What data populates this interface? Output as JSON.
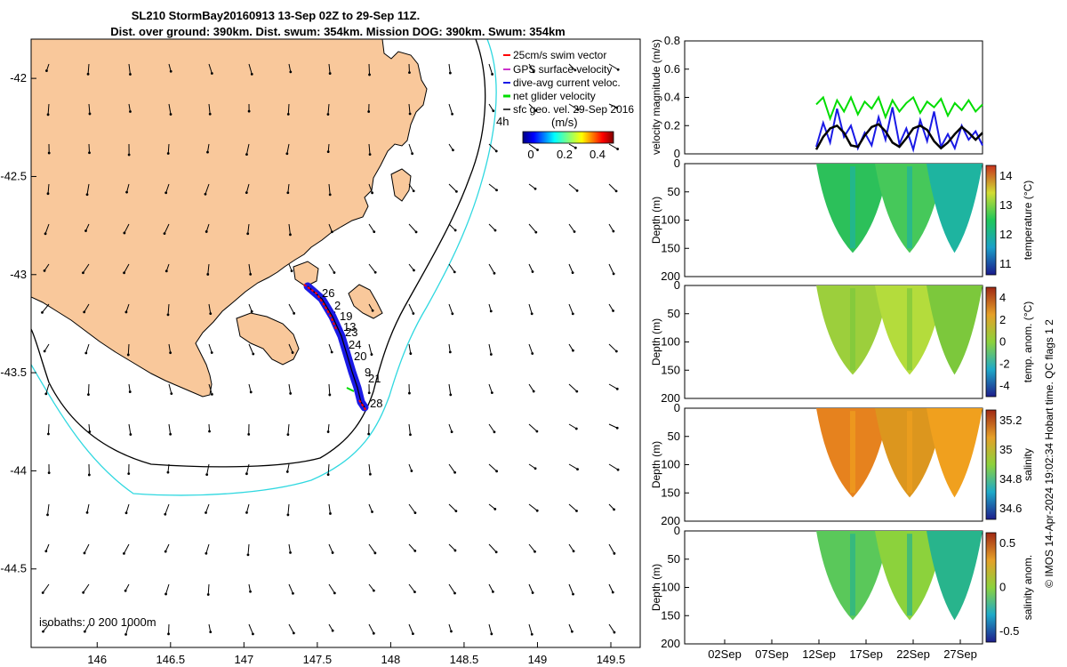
{
  "title": {
    "line1": "SL210 StormBay20160913 13-Sep 02Z to 29-Sep 11Z.",
    "line2": "Dist. over ground: 390km. Dist. swum: 354km. Mission DOG: 390km. Swum: 354km"
  },
  "colors": {
    "land": "#f9c89b",
    "isobath_200": "#000000",
    "isobath_1000": "#2fd8e0",
    "track": "#1a1ae6",
    "swim_vector": "#ff0000",
    "net_velocity": "#00dd00",
    "gps_velocity": "#cc33cc",
    "sfc_geo": "#000000"
  },
  "chart_data": [
    {
      "type": "map",
      "xlim": [
        145.55,
        149.7
      ],
      "ylim": [
        -44.9,
        -41.8
      ],
      "x_ticks": [
        "146",
        "146.5",
        "147",
        "147.5",
        "148",
        "148.5",
        "149",
        "149.5"
      ],
      "y_ticks": [
        "-42",
        "-42.5",
        "-43",
        "-43.5",
        "-44",
        "-44.5"
      ],
      "legend": [
        "25cm/s swim vector",
        "GPS surface velocity",
        "dive-avg current veloc.",
        "net glider velocity",
        "sfc geo. vel. 29-Sep 2016"
      ],
      "legend_note": "4h",
      "colorbar_label": "(m/s)",
      "colorbar_ticks": [
        "0",
        "0.2",
        "0.4"
      ],
      "isobath_label": "isobaths: 0   200  1000m",
      "track_labels": [
        "26",
        "2",
        "19",
        "13",
        "23",
        "24",
        "20",
        "9",
        "21",
        "28"
      ],
      "glider_track": [
        [
          147.42,
          -43.1
        ],
        [
          147.5,
          -43.17
        ],
        [
          147.57,
          -43.25
        ],
        [
          147.62,
          -43.33
        ],
        [
          147.66,
          -43.42
        ],
        [
          147.72,
          -43.5
        ],
        [
          147.77,
          -43.58
        ],
        [
          147.81,
          -43.66
        ],
        [
          147.83,
          -43.72
        ]
      ]
    },
    {
      "type": "line",
      "ylabel": "velocity magnitude (m/s)",
      "ylim": [
        0,
        0.8
      ],
      "y_ticks": [
        "0",
        "0.2",
        "0.4",
        "0.6",
        "0.8"
      ],
      "series": [
        {
          "color": "#00dd00",
          "values": [
            0.35,
            0.4,
            0.25,
            0.38,
            0.3,
            0.4,
            0.28,
            0.37,
            0.32,
            0.4,
            0.26,
            0.38,
            0.3,
            0.36,
            0.4,
            0.29,
            0.37,
            0.33,
            0.39,
            0.27,
            0.36,
            0.31,
            0.38,
            0.3,
            0.35
          ]
        },
        {
          "color": "#1a1ae6",
          "values": [
            0.05,
            0.22,
            0.08,
            0.32,
            0.12,
            0.2,
            0.04,
            0.15,
            0.06,
            0.26,
            0.1,
            0.33,
            0.07,
            0.18,
            0.03,
            0.24,
            0.09,
            0.3,
            0.05,
            0.14,
            0.04,
            0.2,
            0.1,
            0.16,
            0.06
          ]
        },
        {
          "color": "#000000",
          "values": [
            0.03,
            0.12,
            0.18,
            0.2,
            0.15,
            0.06,
            0.05,
            0.13,
            0.19,
            0.21,
            0.16,
            0.08,
            0.05,
            0.11,
            0.18,
            0.2,
            0.17,
            0.09,
            0.04,
            0.08,
            0.14,
            0.19,
            0.15,
            0.1,
            0.15
          ]
        }
      ]
    },
    {
      "type": "heatmap",
      "ylabel": "Depth (m)",
      "ylim": [
        200,
        0
      ],
      "y_ticks": [
        "0",
        "50",
        "100",
        "150",
        "200"
      ],
      "colorbar_label": "temperature (°C)",
      "colorbar_ticks": [
        "14",
        "13",
        "12",
        "11"
      ]
    },
    {
      "type": "heatmap",
      "ylabel": "Depth (m)",
      "ylim": [
        200,
        0
      ],
      "y_ticks": [
        "0",
        "50",
        "100",
        "150",
        "200"
      ],
      "colorbar_label": "temp. anom. (°C)",
      "colorbar_ticks": [
        "4",
        "2",
        "0",
        "-2",
        "-4"
      ]
    },
    {
      "type": "heatmap",
      "ylabel": "Depth (m)",
      "ylim": [
        200,
        0
      ],
      "y_ticks": [
        "0",
        "50",
        "100",
        "150",
        "200"
      ],
      "colorbar_label": "salinity",
      "colorbar_ticks": [
        "35.2",
        "35",
        "34.8",
        "34.6"
      ]
    },
    {
      "type": "heatmap",
      "ylabel": "Depth (m)",
      "ylim": [
        200,
        0
      ],
      "y_ticks": [
        "0",
        "50",
        "100",
        "150",
        "200"
      ],
      "colorbar_label": "salinity anom.",
      "colorbar_ticks": [
        "0.5",
        "0",
        "-0.5"
      ],
      "x_ticks": [
        "02Sep",
        "07Sep",
        "12Sep",
        "17Sep",
        "22Sep",
        "27Sep"
      ]
    }
  ],
  "footnote": "© IMOS 14-Apr-2024 19:02:34 Hobart time. QC flags 1  2"
}
